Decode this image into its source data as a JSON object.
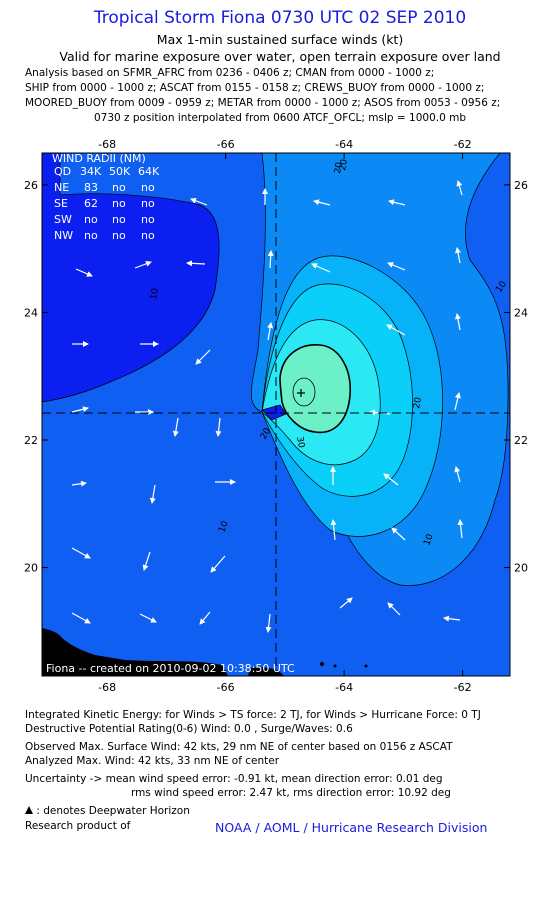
{
  "header": {
    "title": "Tropical Storm Fiona 0730 UTC 02 SEP 2010",
    "subtitle1": "Max 1-min sustained surface winds (kt)",
    "subtitle2": "Valid for marine exposure over water, open terrain exposure over land",
    "analysis_lines": [
      "Analysis based on SFMR_AFRC from 0236 - 0406 z; CMAN from 0000 - 1000 z;",
      "SHIP from 0000 - 1000 z; ASCAT from 0155 - 0158 z; CREWS_BUOY from 0000 - 1000 z;",
      "MOORED_BUOY from 0009 - 0959 z; METAR from 0000 - 1000 z; ASOS from 0053 - 0956 z;",
      "0730 z position interpolated from 0600 ATCF_OFCL; mslp = 1000.0 mb"
    ]
  },
  "map": {
    "lon_ticks": [
      "-68",
      "-66",
      "-64",
      "-62"
    ],
    "lat_ticks": [
      "26",
      "24",
      "22",
      "20"
    ],
    "lon_values": [
      -68,
      -66,
      -64,
      -62
    ],
    "lat_values": [
      26,
      24,
      22,
      20
    ],
    "lon_range": [
      -69.1,
      -61.2
    ],
    "lat_range": [
      18.3,
      26.5
    ],
    "center": {
      "lon": -65.0,
      "lat": 22.3
    },
    "max_wind": {
      "lon": -64.7,
      "lat": 22.6
    },
    "wind_radii": {
      "title": "WIND RADII (NM)",
      "header": [
        "QD",
        "34K",
        "50K",
        "64K"
      ],
      "rows": [
        [
          "NE",
          "83",
          "no",
          "no"
        ],
        [
          "SE",
          "62",
          "no",
          "no"
        ],
        [
          "SW",
          "no",
          "no",
          "no"
        ],
        [
          "NW",
          "no",
          "no",
          "no"
        ]
      ]
    },
    "credit": "Fiona -- created on 2010-09-02  10:38:50 UTC",
    "contour_labels": [
      "10",
      "10",
      "10",
      "10",
      "20",
      "20",
      "20",
      "20",
      "30"
    ],
    "colors": {
      "lt10": "#0a1ff0",
      "c10": "#0f5ff2",
      "c15": "#0b8af5",
      "c20": "#08b2f8",
      "c25": "#0acff8",
      "c30": "#2be8f5",
      "c35": "#6cf0c8",
      "land": "#000000"
    }
  },
  "footer": {
    "ike": "Integrated Kinetic Energy:  for Winds > TS force: 2 TJ,  for Winds > Hurricane Force: 0 TJ",
    "dpr": "Destructive Potential Rating(0-6)   Wind: 0.0 , Surge/Waves: 0.6",
    "obs": "Observed Max. Surface Wind: 42 kts, 29 nm NE of center based on 0156 z ASCAT",
    "anl": "Analyzed Max. Wind: 42 kts, 33 nm NE of center",
    "unc1": "Uncertainty -> mean wind speed error:  -0.91 kt,   mean direction error: 0.01 deg",
    "unc2": "rms wind speed error: 2.47 kt,   rms direction error: 10.92 deg",
    "dwh": " : denotes Deepwater Horizon",
    "research": "Research product of",
    "noaa": "NOAA / AOML / Hurricane Research Division"
  }
}
